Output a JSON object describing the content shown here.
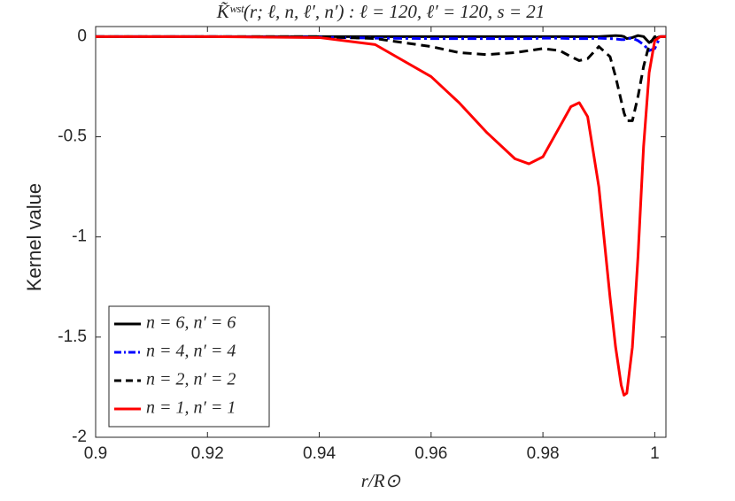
{
  "chart_data": {
    "type": "line",
    "title": "K̃ʷˢᵗ(r; ℓ, n, ℓ′, n′) : ℓ = 120, ℓ′ = 120, s = 21",
    "x_label": "r/R⊙",
    "y_label": "Kernel value",
    "x": [
      0.9,
      0.92,
      0.94,
      0.95,
      0.96,
      0.965,
      0.97,
      0.975,
      0.9775,
      0.98,
      0.983,
      0.985,
      0.9865,
      0.988,
      0.99,
      0.992,
      0.993,
      0.994,
      0.9945,
      0.995,
      0.996,
      0.997,
      0.998,
      0.999,
      1.0,
      1.001,
      1.002
    ],
    "series": [
      {
        "name": "n = 6, n′ = 6",
        "color": "#000000",
        "linestyle": "solid",
        "values": [
          0,
          0,
          0,
          0,
          0,
          0,
          0,
          0,
          0,
          0,
          0,
          0,
          0,
          0,
          0,
          0.003,
          0.005,
          0.003,
          0,
          -0.01,
          -0.005,
          0.005,
          0,
          -0.03,
          -0.01,
          0,
          0
        ]
      },
      {
        "name": "n = 4, n′ = 4",
        "color": "#0000ff",
        "linestyle": "dashdot",
        "values": [
          0,
          0,
          -0.003,
          -0.008,
          -0.01,
          -0.01,
          -0.01,
          -0.01,
          -0.01,
          -0.008,
          -0.008,
          -0.01,
          -0.01,
          -0.01,
          -0.008,
          -0.01,
          -0.012,
          -0.015,
          -0.015,
          -0.01,
          -0.008,
          -0.02,
          -0.04,
          -0.07,
          -0.06,
          0,
          0
        ]
      },
      {
        "name": "n = 2, n′ = 2",
        "color": "#000000",
        "linestyle": "dashed",
        "values": [
          0,
          0,
          0,
          -0.01,
          -0.05,
          -0.08,
          -0.09,
          -0.08,
          -0.07,
          -0.06,
          -0.07,
          -0.1,
          -0.12,
          -0.11,
          -0.05,
          -0.1,
          -0.2,
          -0.32,
          -0.38,
          -0.42,
          -0.42,
          -0.3,
          -0.15,
          -0.04,
          0,
          0,
          0
        ]
      },
      {
        "name": "n = 1, n′ = 1",
        "color": "#ff0000",
        "linestyle": "solid",
        "values": [
          0,
          0,
          -0.005,
          -0.04,
          -0.2,
          -0.33,
          -0.48,
          -0.61,
          -0.635,
          -0.6,
          -0.45,
          -0.35,
          -0.33,
          -0.4,
          -0.75,
          -1.3,
          -1.55,
          -1.74,
          -1.79,
          -1.78,
          -1.55,
          -1.1,
          -0.55,
          -0.18,
          -0.02,
          0,
          0
        ]
      }
    ],
    "xlim": [
      0.9,
      1.002
    ],
    "ylim": [
      -2,
      0.05
    ],
    "xticks": [
      0.9,
      0.92,
      0.94,
      0.96,
      0.98,
      1
    ],
    "yticks": [
      -2,
      -1.5,
      -1,
      -0.5,
      0
    ],
    "legend": "southwest",
    "grid": false
  }
}
